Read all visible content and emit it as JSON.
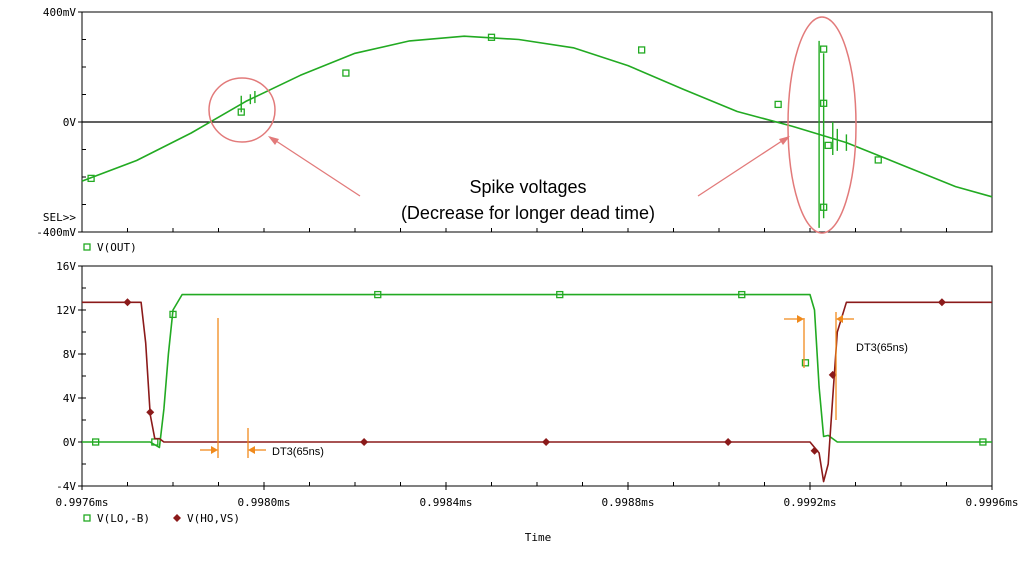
{
  "chart_data": [
    {
      "type": "line",
      "name": "top-plot",
      "ylim": [
        -400,
        400
      ],
      "xlim": [
        0.9976,
        0.9996
      ],
      "y_ticks": [
        {
          "value": 400,
          "label": "400mV"
        },
        {
          "value": 0,
          "label": "0V"
        },
        {
          "value": -400,
          "label": "-400mV"
        }
      ],
      "sel_marker": "SEL>>",
      "series": [
        {
          "name": "V(OUT)",
          "color": "#22aa22",
          "marker": "square",
          "x": [
            0.9976,
            0.99772,
            0.99784,
            0.99796,
            0.99808,
            0.9982,
            0.99832,
            0.99844,
            0.99856,
            0.99868,
            0.9988,
            0.99892,
            0.99904,
            0.99916,
            0.99922,
            0.99928,
            0.9994,
            0.99952,
            0.9996
          ],
          "y": [
            -215,
            -140,
            -40,
            75,
            170,
            250,
            295,
            312,
            300,
            270,
            205,
            120,
            38,
            -15,
            -45,
            -75,
            -155,
            -235,
            -272
          ],
          "marker_points": [
            {
              "x": 0.99762,
              "y": -205
            },
            {
              "x": 0.99795,
              "y": 36
            },
            {
              "x": 0.99818,
              "y": 178
            },
            {
              "x": 0.9985,
              "y": 308
            },
            {
              "x": 0.99883,
              "y": 262
            },
            {
              "x": 0.99913,
              "y": 64
            },
            {
              "x": 0.99923,
              "y": 265
            },
            {
              "x": 0.99923,
              "y": 68
            },
            {
              "x": 0.99923,
              "y": -310
            },
            {
              "x": 0.99924,
              "y": -85
            },
            {
              "x": 0.99935,
              "y": -138
            }
          ]
        }
      ],
      "annotations": {
        "line1": "Spike voltages",
        "line2": "(Decrease for longer dead time)"
      }
    },
    {
      "type": "line",
      "name": "bottom-plot",
      "ylim": [
        -4,
        16
      ],
      "xlim": [
        0.9976,
        0.9996
      ],
      "y_ticks": [
        {
          "value": 16,
          "label": "16V"
        },
        {
          "value": 12,
          "label": "12V"
        },
        {
          "value": 8,
          "label": "8V"
        },
        {
          "value": 4,
          "label": "4V"
        },
        {
          "value": 0,
          "label": "0V"
        },
        {
          "value": -4,
          "label": "-4V"
        }
      ],
      "x_ticks": [
        {
          "value": 0.9976,
          "label": "0.9976ms"
        },
        {
          "value": 0.998,
          "label": "0.9980ms"
        },
        {
          "value": 0.9984,
          "label": "0.9984ms"
        },
        {
          "value": 0.9988,
          "label": "0.9988ms"
        },
        {
          "value": 0.9992,
          "label": "0.9992ms"
        },
        {
          "value": 0.9996,
          "label": "0.9996ms"
        }
      ],
      "xlabel": "Time",
      "series": [
        {
          "name": "V(LO,-B)",
          "color": "#22aa22",
          "marker": "square",
          "x": [
            0.9976,
            0.99775,
            0.99777,
            0.99778,
            0.99779,
            0.9978,
            0.99782,
            0.9992,
            0.99921,
            0.99922,
            0.99923,
            0.99924,
            0.99926,
            0.9996
          ],
          "y": [
            0,
            0,
            -0.5,
            3,
            8,
            12,
            13.4,
            13.4,
            12,
            5,
            0.5,
            0.6,
            0,
            0
          ],
          "marker_points": [
            {
              "x": 0.99763,
              "y": 0
            },
            {
              "x": 0.99776,
              "y": 0
            },
            {
              "x": 0.9978,
              "y": 11.6
            },
            {
              "x": 0.99825,
              "y": 13.4
            },
            {
              "x": 0.99865,
              "y": 13.4
            },
            {
              "x": 0.99905,
              "y": 13.4
            },
            {
              "x": 0.99919,
              "y": 7.2
            },
            {
              "x": 0.99958,
              "y": 0
            }
          ]
        },
        {
          "name": "V(HO,VS)",
          "color": "#8b1a1a",
          "marker": "diamond",
          "x": [
            0.9976,
            0.99773,
            0.99774,
            0.99775,
            0.99776,
            0.99777,
            0.99778,
            0.9992,
            0.99922,
            0.99923,
            0.99924,
            0.99925,
            0.99926,
            0.99928,
            0.9996
          ],
          "y": [
            12.7,
            12.7,
            9,
            2.5,
            0.3,
            0.3,
            0,
            0,
            -1,
            -3.6,
            -2,
            4,
            10,
            12.7,
            12.7
          ],
          "marker_points": [
            {
              "x": 0.9977,
              "y": 12.7
            },
            {
              "x": 0.99775,
              "y": 2.7
            },
            {
              "x": 0.99822,
              "y": 0
            },
            {
              "x": 0.99862,
              "y": 0
            },
            {
              "x": 0.99902,
              "y": 0
            },
            {
              "x": 0.99921,
              "y": -0.8
            },
            {
              "x": 0.99925,
              "y": 6.1
            },
            {
              "x": 0.99949,
              "y": 12.7
            }
          ]
        }
      ],
      "annotations": {
        "dt_left": "DT3(65ns)",
        "dt_right": "DT3(65ns)"
      }
    }
  ]
}
